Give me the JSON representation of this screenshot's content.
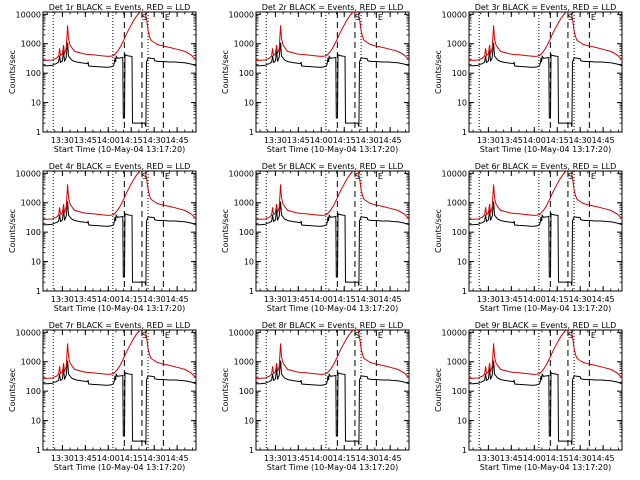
{
  "chart_data": {
    "type": "line",
    "panels": [
      {
        "title": "Det 1r BLACK = Events, RED = LLD",
        "xlabel": "Start Time (10-May-04 13:17:20)",
        "ylabel": "Counts/sec",
        "lld_peak": 1.0
      },
      {
        "title": "Det 2r BLACK = Events, RED = LLD",
        "xlabel": "Start Time (10-May-04 13:17:20)",
        "ylabel": "Counts/sec",
        "lld_peak": 1.0
      },
      {
        "title": "Det 3r BLACK = Events, RED = LLD",
        "xlabel": "Start Time (10-May-04 13:17:20)",
        "ylabel": "Counts/sec",
        "lld_peak": 1.0
      },
      {
        "title": "Det 4r BLACK = Events, RED = LLD",
        "xlabel": "Start Time (10-May-04 13:17:20)",
        "ylabel": "Counts/sec",
        "lld_peak": 1.0
      },
      {
        "title": "Det 5r BLACK = Events, RED = LLD",
        "xlabel": "Start Time (10-May-04 13:17:20)",
        "ylabel": "Counts/sec",
        "lld_peak": 1.0
      },
      {
        "title": "Det 6r BLACK = Events, RED = LLD",
        "xlabel": "Start Time (10-May-04 13:17:20)",
        "ylabel": "Counts/sec",
        "lld_peak": 1.0
      },
      {
        "title": "Det 7r BLACK = Events, RED = LLD",
        "xlabel": "Start Time (10-May-04 13:17:20)",
        "ylabel": "Counts/sec",
        "lld_peak": 1.0
      },
      {
        "title": "Det 8r BLACK = Events, RED = LLD",
        "xlabel": "Start Time (10-May-04 13:17:20)",
        "ylabel": "Counts/sec",
        "lld_peak": 1.3
      },
      {
        "title": "Det 9r BLACK = Events, RED = LLD",
        "xlabel": "Start Time (10-May-04 13:17:20)",
        "ylabel": "Counts/sec",
        "lld_peak": 1.0
      }
    ],
    "x_ticks": [
      {
        "label": "13:30",
        "min": 30
      },
      {
        "label": "13:45",
        "min": 45
      },
      {
        "label": "14:00",
        "min": 60
      },
      {
        "label": "14:15",
        "min": 75
      },
      {
        "label": "14:30",
        "min": 90
      },
      {
        "label": "14:45",
        "min": 105
      }
    ],
    "xlim_min": [
      17.33,
      117.33
    ],
    "y_ticks": [
      1,
      10,
      100,
      1000,
      10000
    ],
    "ylim": [
      1,
      12000
    ],
    "y_scale": "log",
    "dotted_lines_min": [
      24,
      63,
      86
    ],
    "dashed_lines_min": [
      70.5,
      82,
      96
    ],
    "markers": [
      {
        "label": "S",
        "min": 81.3
      },
      {
        "label": "E",
        "min": 96.3
      }
    ],
    "series": [
      {
        "color": "#000000",
        "points": [
          [
            17.33,
            180
          ],
          [
            20,
            180
          ],
          [
            23.5,
            185
          ],
          [
            24.5,
            200
          ],
          [
            26,
            210
          ],
          [
            27.5,
            235
          ],
          [
            28.2,
            390
          ],
          [
            28.8,
            230
          ],
          [
            30,
            260
          ],
          [
            30.8,
            600
          ],
          [
            31.4,
            250
          ],
          [
            32.5,
            350
          ],
          [
            33.4,
            1100
          ],
          [
            34,
            380
          ],
          [
            36,
            280
          ],
          [
            38,
            250
          ],
          [
            41,
            230
          ],
          [
            44,
            220
          ],
          [
            46.5,
            210
          ],
          [
            46.8,
            240
          ],
          [
            47.2,
            175
          ],
          [
            50,
            170
          ],
          [
            54,
            165
          ],
          [
            58,
            160
          ],
          [
            60,
            160
          ],
          [
            62,
            165
          ],
          [
            63.5,
            180
          ],
          [
            64,
            230
          ],
          [
            64.4,
            330
          ],
          [
            64.8,
            240
          ],
          [
            65.2,
            375
          ],
          [
            66,
            320
          ],
          [
            68,
            330
          ],
          [
            69.5,
            340
          ],
          [
            69.8,
            3
          ],
          [
            70.6,
            3
          ],
          [
            70.9,
            430
          ],
          [
            72,
            400
          ],
          [
            74,
            380
          ],
          [
            75.5,
            370
          ],
          [
            75.8,
            2
          ],
          [
            79.5,
            2
          ],
          [
            80,
            2
          ],
          [
            82,
            2
          ],
          [
            84,
            2
          ],
          [
            84.6,
            1.5
          ],
          [
            85,
            240
          ],
          [
            86,
            330
          ],
          [
            88,
            320
          ],
          [
            90,
            310
          ],
          [
            90.3,
            270
          ],
          [
            91,
            260
          ],
          [
            93,
            250
          ],
          [
            96,
            250
          ],
          [
            100,
            240
          ],
          [
            104,
            240
          ],
          [
            107,
            230
          ],
          [
            110,
            225
          ],
          [
            114,
            205
          ],
          [
            117.33,
            180
          ]
        ]
      },
      {
        "color": "#d40000",
        "points": [
          [
            17.33,
            270
          ],
          [
            20,
            275
          ],
          [
            23.5,
            280
          ],
          [
            24.5,
            300
          ],
          [
            26,
            320
          ],
          [
            27.5,
            380
          ],
          [
            28.2,
            700
          ],
          [
            28.8,
            400
          ],
          [
            30,
            450
          ],
          [
            30.8,
            900
          ],
          [
            31.4,
            450
          ],
          [
            32.5,
            700
          ],
          [
            33.4,
            4200
          ],
          [
            34,
            1500
          ],
          [
            35,
            900
          ],
          [
            36.5,
            700
          ],
          [
            38,
            550
          ],
          [
            41,
            500
          ],
          [
            44,
            450
          ],
          [
            47,
            430
          ],
          [
            50,
            420
          ],
          [
            54,
            400
          ],
          [
            58,
            380
          ],
          [
            60,
            370
          ],
          [
            62,
            380
          ],
          [
            63.5,
            400
          ],
          [
            64.5,
            450
          ],
          [
            66,
            550
          ],
          [
            68,
            800
          ],
          [
            70,
            1300
          ],
          [
            72,
            2200
          ],
          [
            74,
            3500
          ],
          [
            76,
            5500
          ],
          [
            78,
            8000
          ],
          [
            80,
            11000
          ],
          [
            82,
            14000
          ],
          [
            84,
            12000
          ],
          [
            85,
            7000
          ],
          [
            86,
            2800
          ],
          [
            87,
            1700
          ],
          [
            88,
            1300
          ],
          [
            90,
            1100
          ],
          [
            92,
            950
          ],
          [
            95,
            850
          ],
          [
            100,
            750
          ],
          [
            105,
            650
          ],
          [
            110,
            550
          ],
          [
            114,
            420
          ],
          [
            117.33,
            290
          ]
        ]
      }
    ]
  }
}
